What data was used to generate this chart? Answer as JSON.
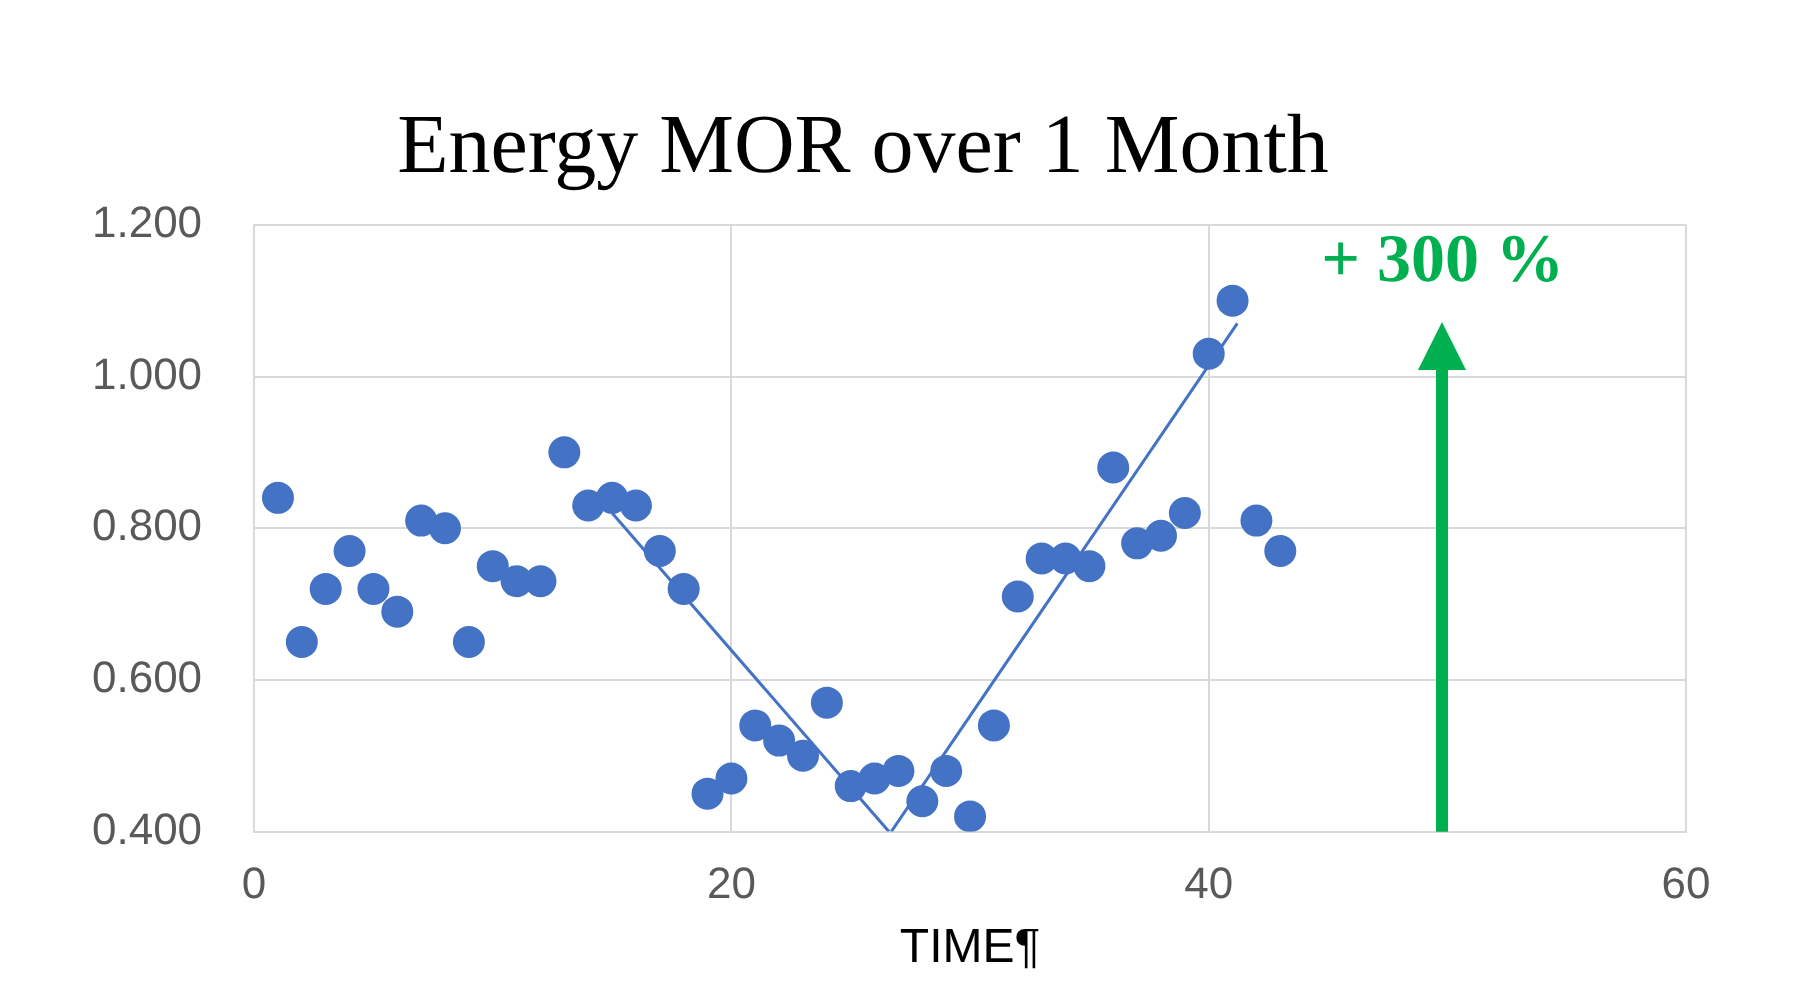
{
  "chart_data": {
    "type": "scatter",
    "title": "Energy MOR over 1 Month",
    "xlabel": "TIME¶",
    "series": [
      {
        "color": "#4472c4",
        "x": [
          1,
          2,
          3,
          4,
          5,
          6,
          7,
          8,
          9,
          10,
          11,
          12,
          13,
          14,
          15,
          16,
          17,
          18,
          19,
          20,
          21,
          22,
          23,
          24,
          25,
          26,
          27,
          28,
          29,
          30,
          31,
          32,
          33,
          34,
          35,
          36,
          37,
          38,
          39,
          40,
          41,
          42,
          43
        ],
        "values": [
          0.84,
          0.65,
          0.72,
          0.77,
          0.72,
          0.69,
          0.81,
          0.8,
          0.65,
          0.75,
          0.73,
          0.73,
          0.9,
          0.83,
          0.84,
          0.83,
          0.77,
          0.72,
          0.45,
          0.47,
          0.54,
          0.52,
          0.5,
          0.57,
          0.46,
          0.47,
          0.48,
          0.44,
          0.48,
          0.42,
          0.54,
          0.71,
          0.76,
          0.76,
          0.75,
          0.88,
          0.78,
          0.79,
          0.82,
          1.03,
          1.1,
          0.81,
          0.77
        ]
      },
      {
        "type": "line",
        "marker": "none",
        "color": "#4472c4",
        "x": [
          15,
          26.6
        ],
        "values": [
          0.82,
          0.4
        ]
      },
      {
        "type": "line",
        "marker": "none",
        "color": "#4472c4",
        "x": [
          26.7,
          41.2
        ],
        "values": [
          0.4,
          1.07
        ]
      }
    ],
    "annotations": [
      "+ 300 %"
    ],
    "xlim": [
      0,
      60
    ],
    "xticks": [
      0,
      20,
      40,
      60
    ],
    "ylim": [
      0.4,
      1.2
    ],
    "yticks": [
      {
        "value": 0.4,
        "label": "0.400"
      },
      {
        "value": 0.6,
        "label": "0.600"
      },
      {
        "value": 0.8,
        "label": "0.800"
      },
      {
        "value": 1.0,
        "label": "1.000"
      },
      {
        "value": 1.2,
        "label": "1.200"
      }
    ],
    "grid": true,
    "legend": false,
    "marker": "circle"
  }
}
